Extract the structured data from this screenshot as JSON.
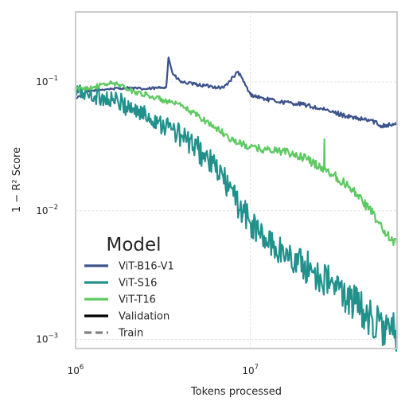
{
  "chart_data": {
    "type": "line",
    "title": "",
    "xlabel": "Tokens processed",
    "ylabel": "1 − R² Score",
    "xscale": "log",
    "yscale": "log",
    "xlim": [
      1000000,
      69000000
    ],
    "ylim": [
      0.00085,
      0.35
    ],
    "grid": true,
    "legend_placement": "lower-left",
    "x_ticks": [
      {
        "value": 1000000,
        "base": "10",
        "exp": "6"
      },
      {
        "value": 10000000,
        "base": "10",
        "exp": "7"
      }
    ],
    "y_ticks": [
      {
        "value": 0.001,
        "base": "10",
        "exp": "−3"
      },
      {
        "value": 0.01,
        "base": "10",
        "exp": "−2"
      },
      {
        "value": 0.1,
        "base": "10",
        "exp": "−1"
      }
    ],
    "legend": {
      "title": "Model",
      "entries": [
        {
          "label": "ViT-B16-V1",
          "color": "#3b528b",
          "style": "solid"
        },
        {
          "label": "ViT-S16",
          "color": "#21918c",
          "style": "solid"
        },
        {
          "label": "ViT-T16",
          "color": "#5ec962",
          "style": "solid"
        },
        {
          "label": "Validation",
          "color": "#000000",
          "style": "solid"
        },
        {
          "label": "Train",
          "color": "#808080",
          "style": "dashed"
        }
      ]
    },
    "series": [
      {
        "name": "ViT-B16-V1",
        "split": "Validation",
        "color": "#3b528b",
        "noise": 0.02,
        "x": [
          1000000,
          1200000,
          1500000,
          2000000,
          2500000,
          3000000,
          3300000,
          3400000,
          3600000,
          4000000,
          5000000,
          7000000,
          8500000,
          10000000,
          12000000,
          15000000,
          20000000,
          30000000,
          40000000,
          50000000,
          55000000,
          69000000
        ],
        "y": [
          0.075,
          0.085,
          0.088,
          0.09,
          0.088,
          0.09,
          0.092,
          0.155,
          0.115,
          0.1,
          0.095,
          0.09,
          0.12,
          0.08,
          0.074,
          0.07,
          0.067,
          0.058,
          0.052,
          0.05,
          0.046,
          0.047
        ]
      },
      {
        "name": "ViT-S16",
        "split": "Validation",
        "color": "#21918c",
        "noise": 0.1,
        "x": [
          1000000,
          1200000,
          1500000,
          2000000,
          2500000,
          3000000,
          4000000,
          5000000,
          6000000,
          7000000,
          8000000,
          10000000,
          12000000,
          15000000,
          20000000,
          25000000,
          30000000,
          40000000,
          50000000,
          60000000,
          69000000
        ],
        "y": [
          0.085,
          0.08,
          0.075,
          0.065,
          0.055,
          0.05,
          0.038,
          0.03,
          0.023,
          0.018,
          0.013,
          0.008,
          0.006,
          0.0048,
          0.0038,
          0.0031,
          0.0026,
          0.0019,
          0.0014,
          0.0012,
          0.0011
        ]
      },
      {
        "name": "ViT-T16",
        "split": "Validation",
        "color": "#5ec962",
        "noise": 0.04,
        "x": [
          1000000,
          1300000,
          1600000,
          1800000,
          2000000,
          2500000,
          3000000,
          4000000,
          5000000,
          7000000,
          8000000,
          10000000,
          12000000,
          15000000,
          20000000,
          25000000,
          30000000,
          40000000,
          50000000,
          60000000,
          69000000
        ],
        "y": [
          0.088,
          0.092,
          0.098,
          0.095,
          0.087,
          0.08,
          0.074,
          0.065,
          0.055,
          0.04,
          0.035,
          0.031,
          0.03,
          0.029,
          0.026,
          0.022,
          0.019,
          0.014,
          0.0095,
          0.0065,
          0.0055
        ]
      }
    ],
    "spikes": [
      {
        "series": "ViT-T16",
        "x": 26500000,
        "y": 0.036
      }
    ]
  }
}
